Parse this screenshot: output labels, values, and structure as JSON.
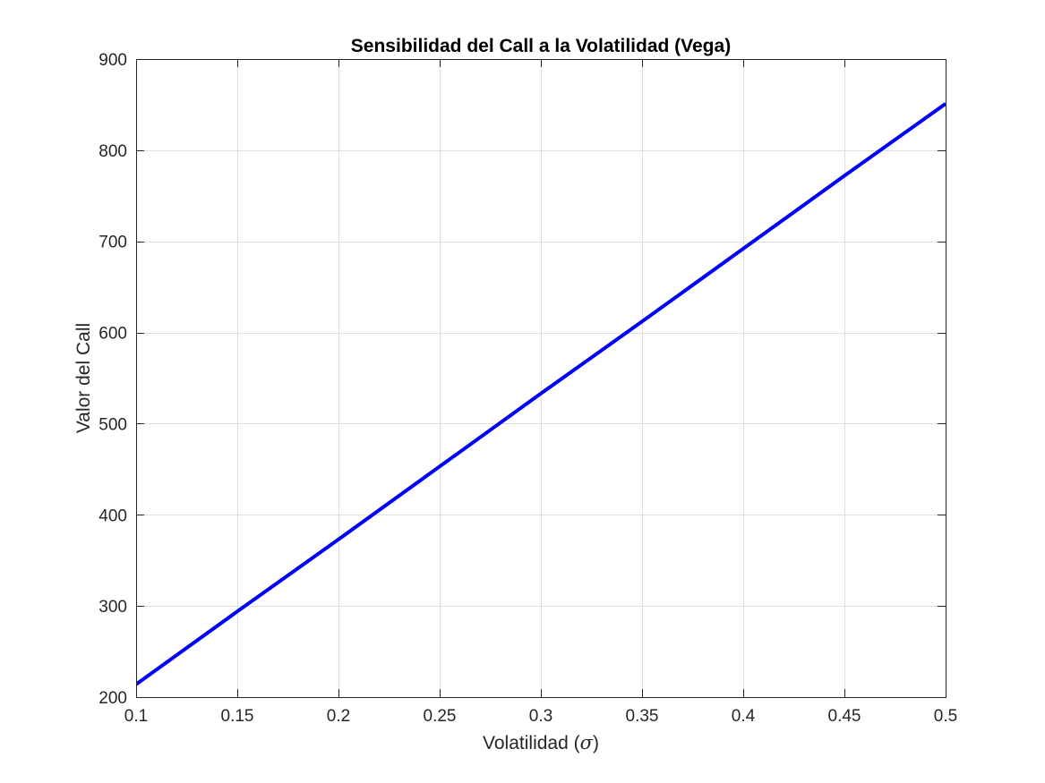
{
  "chart_data": {
    "type": "line",
    "title": "Sensibilidad del Call a la Volatilidad (Vega)",
    "xlabel": "Volatilidad (",
    "xlabel_symbol": "σ",
    "xlabel_suffix": ")",
    "ylabel": "Valor del Call",
    "xlim": [
      0.1,
      0.5
    ],
    "ylim": [
      200,
      900
    ],
    "xticks": [
      0.1,
      0.15,
      0.2,
      0.25,
      0.3,
      0.35,
      0.4,
      0.45,
      0.5
    ],
    "xtick_labels": [
      "0.1",
      "0.15",
      "0.2",
      "0.25",
      "0.3",
      "0.35",
      "0.4",
      "0.45",
      "0.5"
    ],
    "yticks": [
      200,
      300,
      400,
      500,
      600,
      700,
      800,
      900
    ],
    "ytick_labels": [
      "200",
      "300",
      "400",
      "500",
      "600",
      "700",
      "800",
      "900"
    ],
    "grid": true,
    "series": [
      {
        "color": "#0000ff",
        "x": [
          0.1,
          0.15,
          0.2,
          0.25,
          0.3,
          0.35,
          0.4,
          0.45,
          0.5
        ],
        "y": [
          214,
          294,
          373,
          453,
          533,
          612,
          692,
          772,
          851
        ]
      }
    ]
  }
}
